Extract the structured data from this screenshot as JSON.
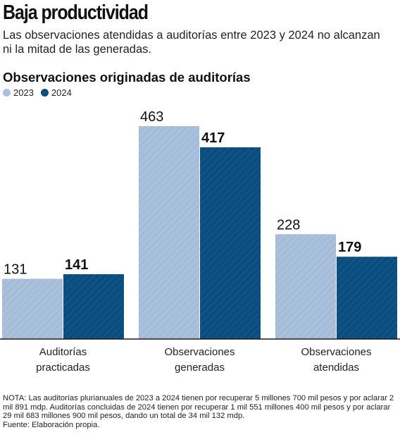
{
  "header": {
    "title": "Baja productividad",
    "subtitle": "Las observaciones atendidas a auditorías entre 2023 y 2024 no alcanzan ni la mitad de las generadas."
  },
  "chart_data": {
    "type": "bar",
    "title": "Observaciones originadas de auditorías",
    "categories": [
      [
        "Auditorías",
        "practicadas"
      ],
      [
        "Observaciones",
        "generadas"
      ],
      [
        "Observaciones",
        "atendidas"
      ]
    ],
    "series": [
      {
        "name": "2023",
        "values": [
          131,
          463,
          228
        ],
        "color": "#a9c0dc"
      },
      {
        "name": "2024",
        "values": [
          141,
          417,
          179
        ],
        "color": "#0b4d7e"
      }
    ],
    "xlabel": "",
    "ylabel": "",
    "ylim": [
      0,
      463
    ],
    "grid": false,
    "legend_position": "top-left"
  },
  "footer": {
    "note": "NOTA: Las auditorías plurianuales de 2023 a 2024 tienen por recuperar 5 millones 700 mil pesos y por aclarar 2 mil 891 mdp. Auditorías concluidas de 2024 tienen por recuperar 1 mil 551 millones 400 mil pesos y por aclarar 29 mil 683 millones 900 mil pesos, dando un total de 34 mil 132 mdp.",
    "source": "Fuente: Elaboración propia."
  }
}
